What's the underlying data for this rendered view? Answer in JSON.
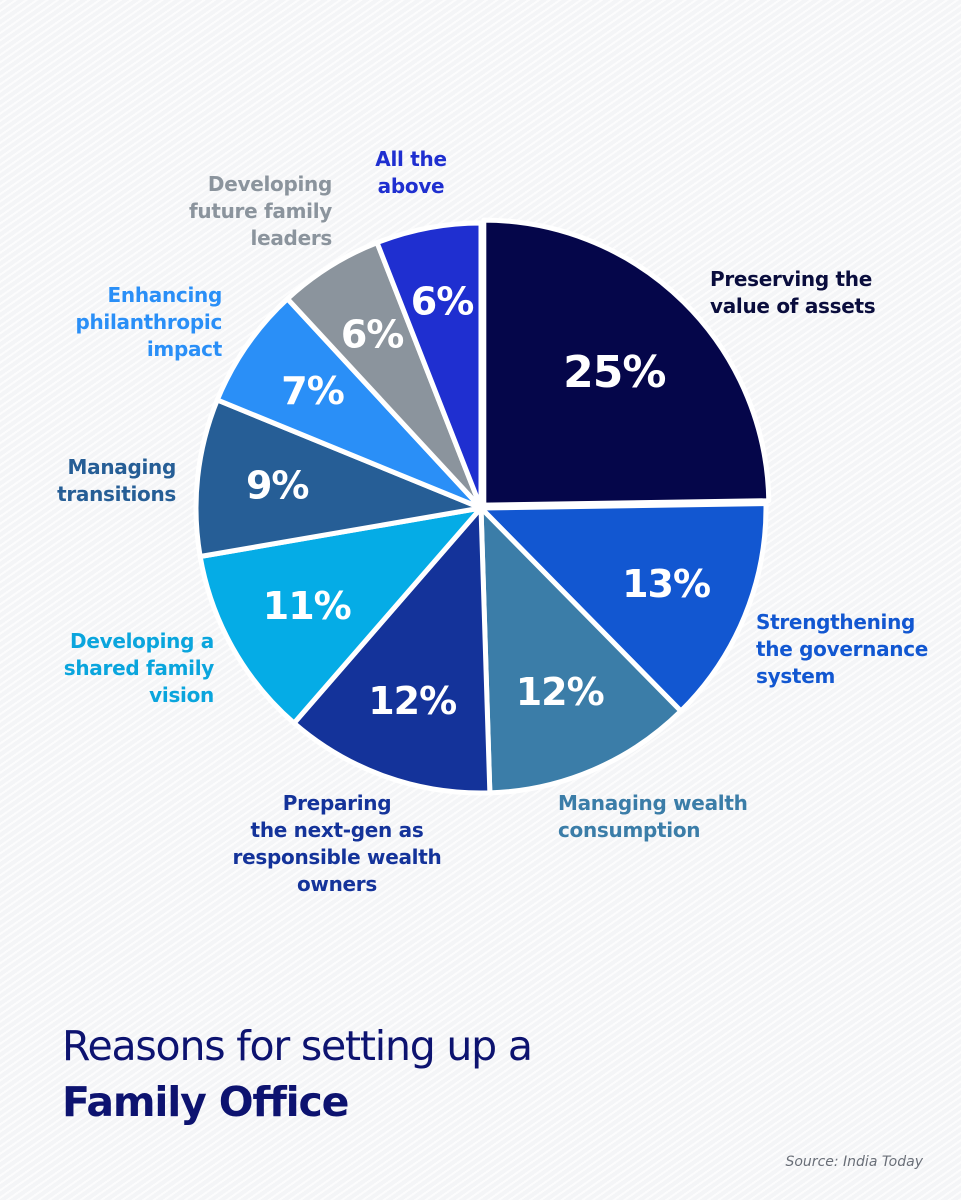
{
  "chart_data": {
    "type": "pie",
    "title": "Reasons for setting up a",
    "title_bold": "Family Office",
    "source": "Source: India Today",
    "slices": [
      {
        "label_lines": [
          "Preserving the",
          "value of assets"
        ],
        "value": 25,
        "value_label": "25%",
        "color": "#05064a",
        "label_color": "#0a0d3d"
      },
      {
        "label_lines": [
          "Strengthening",
          "the governance",
          "system"
        ],
        "value": 13,
        "value_label": "13%",
        "color": "#1257d1",
        "label_color": "#1257d1"
      },
      {
        "label_lines": [
          "Managing wealth",
          "consumption"
        ],
        "value": 12,
        "value_label": "12%",
        "color": "#3b7da8",
        "label_color": "#3b7da8"
      },
      {
        "label_lines": [
          "Preparing",
          "the next-gen as",
          "responsible wealth",
          "owners"
        ],
        "value": 12,
        "value_label": "12%",
        "color": "#14339a",
        "label_color": "#14339a"
      },
      {
        "label_lines": [
          "Developing a",
          "shared family",
          "vision"
        ],
        "value": 11,
        "value_label": "11%",
        "color": "#05ace6",
        "label_color": "#0aa5dd"
      },
      {
        "label_lines": [
          "Managing",
          "transitions"
        ],
        "value": 9,
        "value_label": "9%",
        "color": "#265e96",
        "label_color": "#265e96"
      },
      {
        "label_lines": [
          "Enhancing",
          "philanthropic",
          "impact"
        ],
        "value": 7,
        "value_label": "7%",
        "color": "#2a8ff7",
        "label_color": "#2a8ff7"
      },
      {
        "label_lines": [
          "Developing",
          "future family",
          "leaders"
        ],
        "value": 6,
        "value_label": "6%",
        "color": "#8b949d",
        "label_color": "#8b949d"
      },
      {
        "label_lines": [
          "All the",
          "above"
        ],
        "value": 6,
        "value_label": "6%",
        "color": "#1f2fd0",
        "label_color": "#1f2fd0"
      }
    ]
  }
}
